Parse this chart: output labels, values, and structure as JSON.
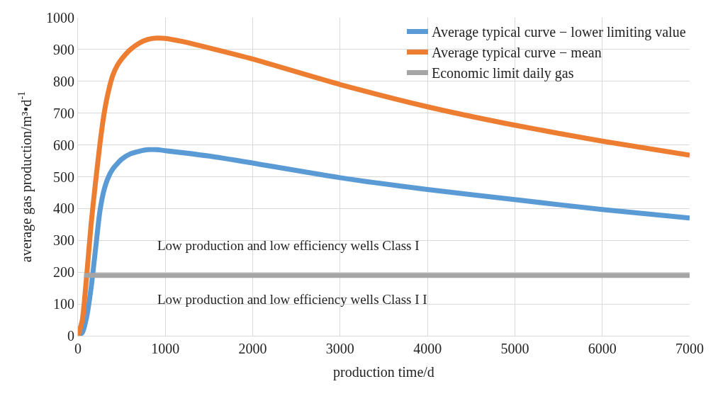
{
  "chart_data": {
    "type": "line",
    "xlabel": "production time/d",
    "ylabel": "average gas production/m³•d$^{-1}$",
    "xlim": [
      0,
      7000
    ],
    "xticks": [
      0,
      1000,
      2000,
      3000,
      4000,
      5000,
      6000,
      7000
    ],
    "ylim": [
      0,
      1000
    ],
    "yticks": [
      0,
      100,
      200,
      300,
      400,
      500,
      600,
      700,
      800,
      900,
      1000
    ],
    "grid": true,
    "legend": "top right",
    "marker": "none",
    "line_style": "solid",
    "annotations": [
      "Low production and low efficiency wells Class I",
      "Low production and low efficiency wells Class I I"
    ],
    "series": [
      {
        "name": "Average typical curve − lower limiting value",
        "color": "#5b9bd5",
        "x": [
          0,
          50,
          100,
          150,
          200,
          250,
          300,
          350,
          400,
          500,
          600,
          700,
          800,
          900,
          1000,
          1500,
          2000,
          3000,
          4000,
          5000,
          6000,
          7000
        ],
        "values": [
          0,
          10,
          60,
          150,
          270,
          390,
          460,
          500,
          525,
          555,
          572,
          580,
          585,
          585,
          582,
          565,
          543,
          497,
          460,
          428,
          397,
          370
        ]
      },
      {
        "name": "Average typical curve − mean",
        "color": "#ed7d31",
        "x": [
          0,
          50,
          100,
          150,
          200,
          250,
          300,
          350,
          400,
          450,
          500,
          600,
          700,
          800,
          900,
          1000,
          1200,
          1500,
          2000,
          3000,
          4000,
          5000,
          6000,
          7000
        ],
        "values": [
          0,
          50,
          190,
          350,
          480,
          600,
          700,
          770,
          820,
          850,
          870,
          900,
          920,
          932,
          936,
          935,
          925,
          905,
          870,
          790,
          720,
          662,
          612,
          568
        ]
      },
      {
        "name": "Economic limit daily gas",
        "color": "#a5a5a5",
        "x": [
          70,
          7000
        ],
        "values": [
          190,
          190
        ]
      }
    ]
  }
}
